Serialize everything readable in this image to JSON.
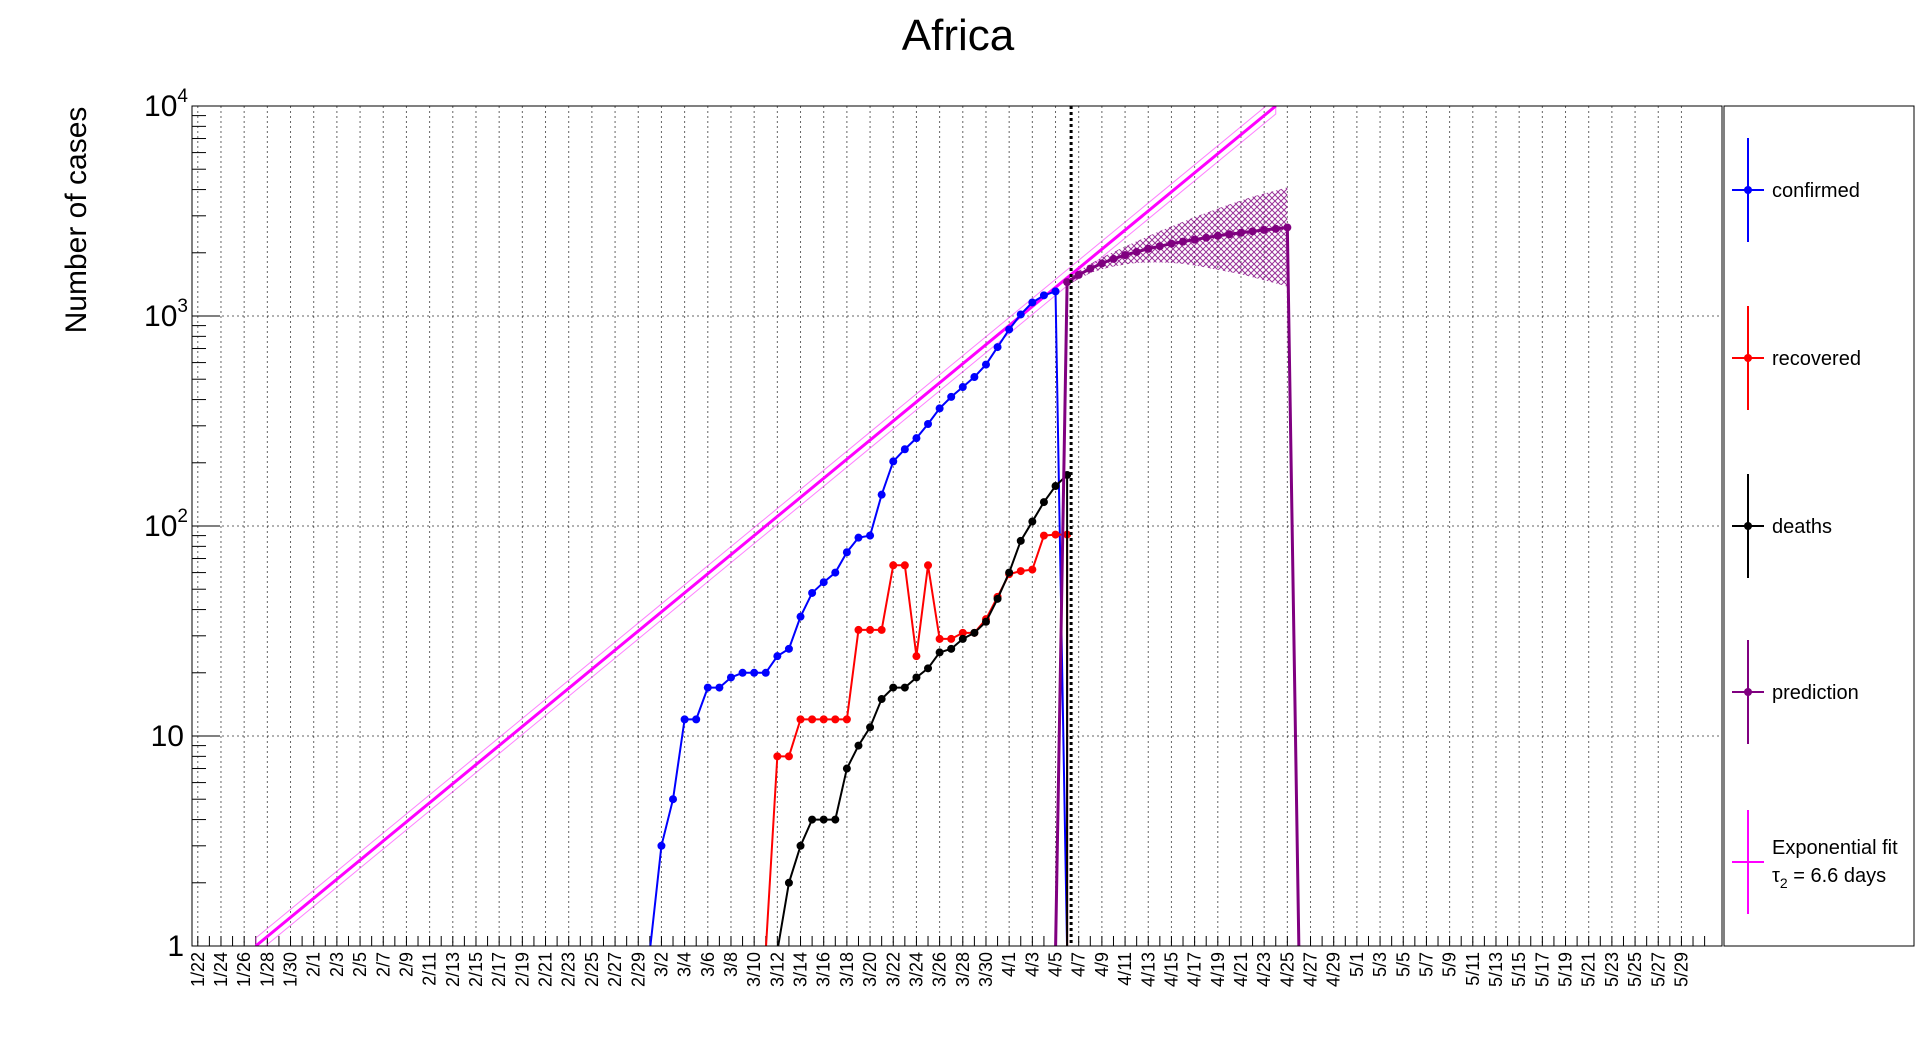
{
  "chart_data": {
    "type": "line",
    "title": "Africa",
    "xlabel": "",
    "ylabel": "Number of cases",
    "yscale": "log",
    "ylim": [
      1,
      10000
    ],
    "y_tick_labels": [
      {
        "base": "1",
        "exp": ""
      },
      {
        "base": "10",
        "exp": ""
      },
      {
        "base": "10",
        "exp": "2"
      },
      {
        "base": "10",
        "exp": "3"
      },
      {
        "base": "10",
        "exp": "4"
      }
    ],
    "x_dates": [
      "1/22",
      "1/23",
      "1/24",
      "1/25",
      "1/26",
      "1/27",
      "1/28",
      "1/29",
      "1/30",
      "1/31",
      "2/1",
      "2/2",
      "2/3",
      "2/4",
      "2/5",
      "2/6",
      "2/7",
      "2/8",
      "2/9",
      "2/10",
      "2/11",
      "2/12",
      "2/13",
      "2/14",
      "2/15",
      "2/16",
      "2/17",
      "2/18",
      "2/19",
      "2/20",
      "2/21",
      "2/22",
      "2/23",
      "2/24",
      "2/25",
      "2/26",
      "2/27",
      "2/28",
      "2/29",
      "3/1",
      "3/2",
      "3/3",
      "3/4",
      "3/5",
      "3/6",
      "3/7",
      "3/8",
      "3/9",
      "3/10",
      "3/11",
      "3/12",
      "3/13",
      "3/14",
      "3/15",
      "3/16",
      "3/17",
      "3/18",
      "3/19",
      "3/20",
      "3/21",
      "3/22",
      "3/23",
      "3/24",
      "3/25",
      "3/26",
      "3/27",
      "3/28",
      "3/29",
      "3/30",
      "3/31",
      "4/1",
      "4/2",
      "4/3",
      "4/4",
      "4/5",
      "4/6",
      "4/7",
      "4/8",
      "4/9",
      "4/10",
      "4/11",
      "4/12",
      "4/13",
      "4/14",
      "4/15",
      "4/16",
      "4/17",
      "4/18",
      "4/19",
      "4/20",
      "4/21",
      "4/22",
      "4/23",
      "4/24",
      "4/25",
      "4/26",
      "4/27",
      "4/28",
      "4/29",
      "4/30",
      "5/1",
      "5/2",
      "5/3",
      "5/4",
      "5/5",
      "5/6",
      "5/7",
      "5/8",
      "5/9",
      "5/10",
      "5/11",
      "5/12",
      "5/13",
      "5/14",
      "5/15",
      "5/16",
      "5/17",
      "5/18",
      "5/19",
      "5/20",
      "5/21",
      "5/22",
      "5/23",
      "5/24",
      "5/25",
      "5/26",
      "5/27",
      "5/28",
      "5/29",
      "5/30",
      "5/31"
    ],
    "x_tick_labels": [
      "1/22",
      "1/24",
      "1/26",
      "1/28",
      "1/30",
      "2/1",
      "2/3",
      "2/5",
      "2/7",
      "2/9",
      "2/11",
      "2/13",
      "2/15",
      "2/17",
      "2/19",
      "2/21",
      "2/23",
      "2/25",
      "2/27",
      "2/29",
      "3/2",
      "3/4",
      "3/6",
      "3/8",
      "3/10",
      "3/12",
      "3/14",
      "3/16",
      "3/18",
      "3/20",
      "3/22",
      "3/24",
      "3/26",
      "3/28",
      "3/30",
      "4/1",
      "4/3",
      "4/5",
      "4/7",
      "4/9",
      "4/11",
      "4/13",
      "4/15",
      "4/17",
      "4/19",
      "4/21",
      "4/23",
      "4/25",
      "4/27",
      "4/29",
      "5/1",
      "5/3",
      "5/5",
      "5/7",
      "5/9",
      "5/11",
      "5/13",
      "5/15",
      "5/17",
      "5/19",
      "5/21",
      "5/23",
      "5/25",
      "5/27",
      "5/29"
    ],
    "vertical_line_date": "4/6",
    "series": [
      {
        "name": "confirmed",
        "color": "#0000ff",
        "start_date": "3/2",
        "values": [
          3,
          5,
          12,
          12,
          17,
          17,
          19,
          20,
          20,
          20,
          24,
          26,
          37,
          48,
          54,
          60,
          75,
          88,
          90,
          141,
          203,
          232,
          262,
          306,
          363,
          412,
          459,
          512,
          587,
          711,
          863,
          1017,
          1160,
          1254,
          1310
        ],
        "drop_to_floor_date": "4/6"
      },
      {
        "name": "recovered",
        "color": "#ff0000",
        "start_date": "3/12",
        "values": [
          8,
          8,
          12,
          12,
          12,
          12,
          12,
          32,
          32,
          32,
          65,
          65,
          24,
          65,
          29,
          29,
          31,
          31,
          36,
          46,
          59,
          61,
          62,
          90,
          91,
          91
        ],
        "drop_to_floor_date": "4/6"
      },
      {
        "name": "deaths",
        "color": "#000000",
        "start_date": "3/13",
        "values": [
          2,
          3,
          4,
          4,
          4,
          7,
          9,
          11,
          15,
          17,
          17,
          19,
          21,
          25,
          26,
          29,
          31,
          35,
          45,
          60,
          85,
          105,
          130,
          155,
          175
        ],
        "drop_to_floor_date": "4/6"
      },
      {
        "name": "prediction",
        "color": "#800080",
        "start_date": "4/6",
        "values": [
          1450,
          1570,
          1680,
          1780,
          1870,
          1950,
          2020,
          2090,
          2150,
          2210,
          2260,
          2310,
          2360,
          2410,
          2450,
          2490,
          2530,
          2570,
          2600,
          2640
        ],
        "band_low": [
          1400,
          1500,
          1600,
          1670,
          1720,
          1760,
          1790,
          1800,
          1800,
          1790,
          1770,
          1740,
          1700,
          1660,
          1620,
          1580,
          1530,
          1480,
          1430,
          1380
        ],
        "band_high": [
          1500,
          1640,
          1770,
          1900,
          2020,
          2140,
          2270,
          2400,
          2540,
          2670,
          2810,
          2960,
          3100,
          3250,
          3400,
          3550,
          3700,
          3830,
          3960,
          4100
        ],
        "drop_to_floor_date": "4/26"
      },
      {
        "name": "Exponential fit",
        "name_line2": "τ₂ = 6.6 days",
        "color": "#ff00ff",
        "fit_from_date": "1/27",
        "fit_from_value": 1,
        "fit_to_date": "4/24",
        "fit_to_value": 10000
      }
    ],
    "legend": {
      "placement": "right",
      "entries": [
        {
          "label": "confirmed",
          "color": "#0000ff"
        },
        {
          "label": "recovered",
          "color": "#ff0000"
        },
        {
          "label": "deaths",
          "color": "#000000"
        },
        {
          "label": "prediction",
          "color": "#800080"
        },
        {
          "label": "Exponential fit",
          "label_line2_sym": "τ",
          "label_line2_sub": "2",
          "label_line2_rest": " = 6.6 days",
          "color": "#ff00ff"
        }
      ]
    },
    "grid": true
  }
}
